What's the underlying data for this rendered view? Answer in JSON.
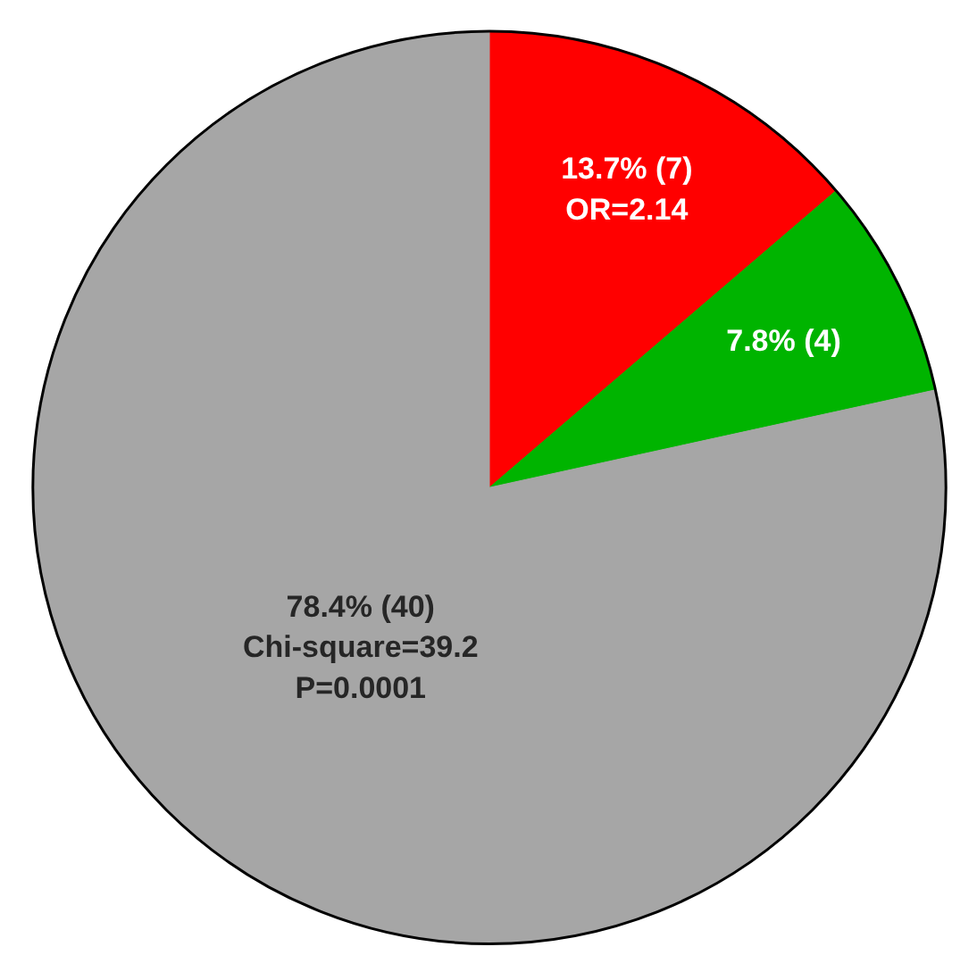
{
  "chart_data": {
    "type": "pie",
    "categories": [
      null,
      null,
      null
    ],
    "values": [
      7,
      4,
      40
    ],
    "colors": [
      "#ff0000",
      "#00b400",
      "#a6a6a6"
    ],
    "value_labels": [
      "13.7% (7)\nOR=2.14",
      "7.8% (4)",
      "78.4% (40)\nChi-square=39.2\nP=0.0001"
    ]
  }
}
